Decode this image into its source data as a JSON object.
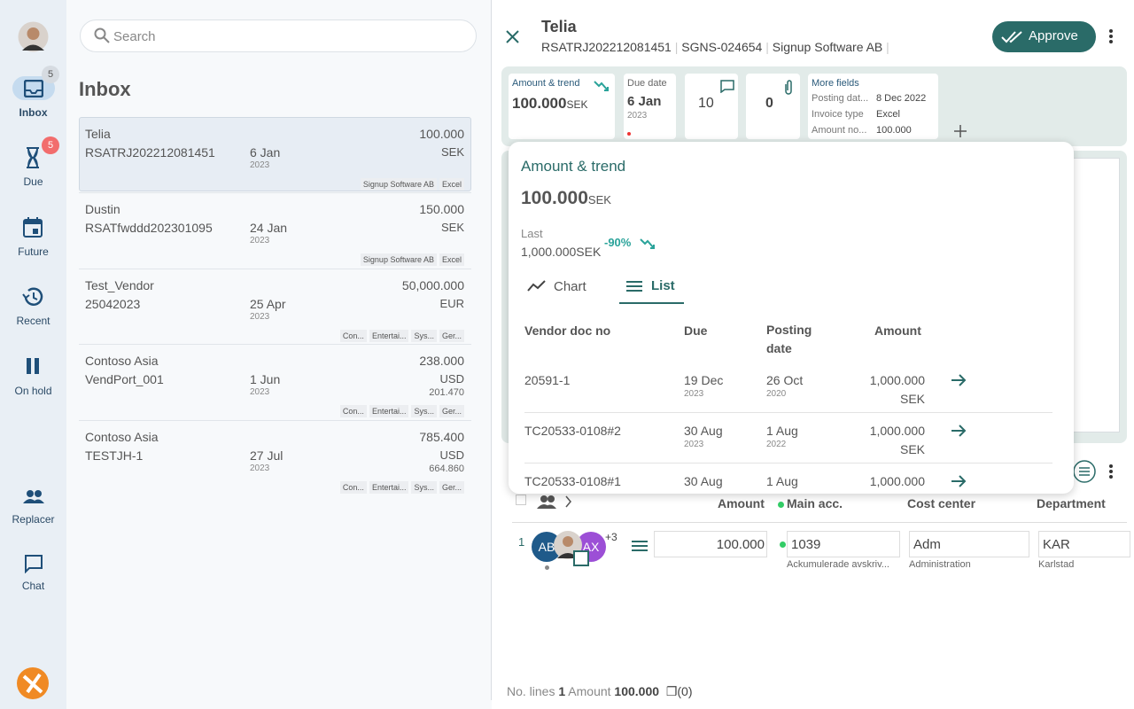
{
  "sidebar": {
    "nav": [
      {
        "label": "Inbox",
        "badge": 5
      },
      {
        "label": "Due",
        "badge": 5
      },
      {
        "label": "Future"
      },
      {
        "label": "Recent"
      },
      {
        "label": "On hold"
      },
      {
        "label": "Replacer"
      },
      {
        "label": "Chat"
      }
    ]
  },
  "search_placeholder": "Search",
  "list_title": "Inbox",
  "inbox": [
    {
      "vendor": "Telia",
      "doc": "RSATRJ202212081451",
      "date": "6 Jan",
      "year": "2023",
      "amount": "100.000",
      "currency": "SEK",
      "tags": [
        "Signup Software AB",
        "Excel"
      ]
    },
    {
      "vendor": "Dustin",
      "doc": "RSATfwddd202301095",
      "date": "24 Jan",
      "year": "2023",
      "amount": "150.000",
      "currency": "SEK",
      "tags": [
        "Signup Software AB",
        "Excel"
      ]
    },
    {
      "vendor": "Test_Vendor",
      "doc": "25042023",
      "date": "25 Apr",
      "year": "2023",
      "amount": "50,000.000",
      "currency": "EUR",
      "tags": [
        "Con...",
        "Entertai...",
        "Sys...",
        "Ger..."
      ]
    },
    {
      "vendor": "Contoso Asia",
      "doc": "VendPort_001",
      "date": "1 Jun",
      "year": "2023",
      "amount": "238.000",
      "currency": "USD",
      "converted": "201.470",
      "tags": [
        "Con...",
        "Entertai...",
        "Sys...",
        "Ger..."
      ]
    },
    {
      "vendor": "Contoso Asia",
      "doc": "TESTJH-1",
      "date": "27 Jul",
      "year": "2023",
      "amount": "785.400",
      "currency": "USD",
      "converted": "664.860",
      "tags": [
        "Con...",
        "Entertai...",
        "Sys...",
        "Ger..."
      ]
    }
  ],
  "detail": {
    "vendor": "Telia",
    "doc": "RSATRJ202212081451",
    "id": "SGNS-024654",
    "company": "Signup Software AB",
    "approve": "Approve",
    "cards": {
      "amount_title": "Amount & trend",
      "amount": "100.000",
      "currency": "SEK",
      "due_title": "Due date",
      "due": "6 Jan",
      "due_year": "2023",
      "comments": "10",
      "attachments": "0",
      "more_title": "More fields",
      "fields": [
        {
          "label": "Posting dat...",
          "value": "8 Dec 2022"
        },
        {
          "label": "Invoice type",
          "value": "Excel"
        },
        {
          "label": "Amount no...",
          "value": "100.000"
        }
      ]
    }
  },
  "popup": {
    "title": "Amount & trend",
    "amount": "100.000",
    "currency": "SEK",
    "last_label": "Last",
    "last": "1,000.000SEK",
    "change": "-90%",
    "tabs": [
      "Chart",
      "List"
    ],
    "columns": [
      "Vendor doc no",
      "Due",
      "Posting date",
      "Amount"
    ],
    "rows": [
      {
        "doc": "20591-1",
        "due": "19 Dec",
        "due_year": "2023",
        "posting": "26 Oct",
        "posting_year": "2020",
        "amount": "1,000.000",
        "currency": "SEK"
      },
      {
        "doc": "TC20533-0108#2",
        "due": "30 Aug",
        "due_year": "2023",
        "posting": "1 Aug",
        "posting_year": "2022",
        "amount": "1,000.000",
        "currency": "SEK"
      },
      {
        "doc": "TC20533-0108#1",
        "due": "30 Aug",
        "posting": "1 Aug",
        "amount": "1,000.000"
      }
    ]
  },
  "lines": {
    "columns": [
      "Amount",
      "Main acc.",
      "Cost center",
      "Department"
    ],
    "row": {
      "number": "1",
      "avatar1": "AB",
      "avatar2": "AX",
      "more": "+3",
      "amount": "100.000",
      "account": "1039",
      "account_name": "Ackumulerade avskriv...",
      "cost_center": "Adm",
      "cost_center_name": "Administration",
      "department": "KAR",
      "department_name": "Karlstad"
    }
  },
  "footer": {
    "lines_label": "No. lines",
    "lines": "1",
    "amount_label": "Amount",
    "amount": "100.000",
    "copies": "(0)"
  }
}
